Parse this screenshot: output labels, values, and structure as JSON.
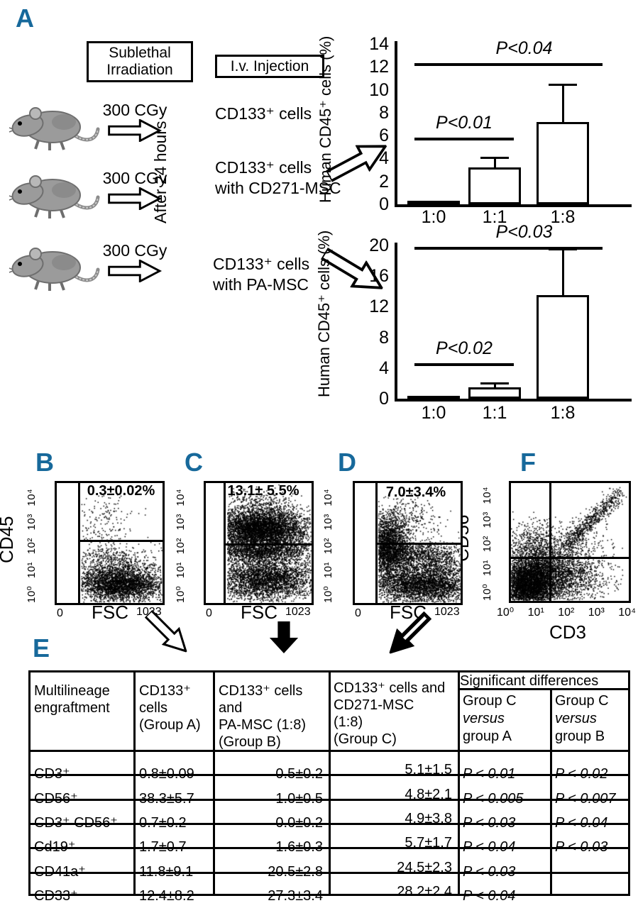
{
  "panel_labels": {
    "a": "A",
    "b": "B",
    "c": "C",
    "d": "D",
    "e": "E",
    "f": "F"
  },
  "colors": {
    "panel_label": "#17699b",
    "ink": "#000000",
    "mouse_body": "#9b9b9b",
    "mouse_outline": "#6e6e6e"
  },
  "panel_a": {
    "irradiation_box": "Sublethal\nIrradiation",
    "injection_box": "I.v. Injection",
    "after_label": "After 24 hours",
    "dose_label": "300 CGy",
    "injections": [
      "CD133⁺ cells",
      "CD133⁺ cells\nwith CD271-MSC",
      "CD133⁺ cells\nwith PA-MSC"
    ]
  },
  "chart_data": [
    {
      "id": "engraftment_cd271",
      "type": "bar",
      "ylabel": "Human CD45⁺ cells (%)",
      "xlabel": "",
      "categories": [
        "1:0",
        "1:1",
        "1:8"
      ],
      "values": [
        0.3,
        3.2,
        7.2
      ],
      "errors": [
        0,
        0.9,
        3.3
      ],
      "fills": [
        "black",
        "white",
        "white"
      ],
      "ylim": [
        0,
        14
      ],
      "yticks": [
        0,
        2,
        4,
        6,
        8,
        10,
        12,
        14
      ],
      "significance": [
        {
          "label": "P<0.01",
          "from": 0,
          "to": 1,
          "y": 5.8
        },
        {
          "label": "P<0.04",
          "from": 0,
          "to": 2,
          "y": 12.3
        }
      ]
    },
    {
      "id": "engraftment_pa",
      "type": "bar",
      "ylabel": "Human CD45⁺ cells (%)",
      "xlabel": "",
      "categories": [
        "1:0",
        "1:1",
        "1:8"
      ],
      "values": [
        0.2,
        1.5,
        13.5
      ],
      "errors": [
        0,
        0.5,
        6.0
      ],
      "fills": [
        "black",
        "white",
        "white"
      ],
      "ylim": [
        0,
        20
      ],
      "yticks": [
        0,
        4,
        8,
        12,
        16,
        20
      ],
      "significance": [
        {
          "label": "P<0.02",
          "from": 0,
          "to": 1,
          "y": 4.6
        },
        {
          "label": "P<0.03",
          "from": 0,
          "to": 2,
          "y": 19.8
        }
      ]
    },
    {
      "id": "flow_b",
      "type": "scatter",
      "panel": "B",
      "xlabel": "FSC",
      "ylabel": "CD45",
      "x_ticks": [
        "0",
        "1023"
      ],
      "y_ticks": "10⁰ 10¹ 10² 10³ 10⁴",
      "gate_label": "0.3±0.02%",
      "gate": {
        "vx": 0.22,
        "hy": 0.52
      },
      "clip_x": 0.23,
      "clusters": [
        {
          "n": 2600,
          "cx": 0.6,
          "cy": 0.15,
          "sx": 0.2,
          "sy": 0.065
        },
        {
          "n": 1000,
          "cx": 0.55,
          "cy": 0.25,
          "sx": 0.24,
          "sy": 0.08
        },
        {
          "n": 220,
          "cx": 0.5,
          "cy": 0.4,
          "sx": 0.2,
          "sy": 0.05
        },
        {
          "n": 130,
          "cx": 0.45,
          "cy": 0.73,
          "sx": 0.15,
          "sy": 0.12
        },
        {
          "n": 60,
          "cx": 0.35,
          "cy": 0.58,
          "sx": 0.2,
          "sy": 0.05
        }
      ]
    },
    {
      "id": "flow_c",
      "type": "scatter",
      "panel": "C",
      "xlabel": "FSC",
      "ylabel": "CD45",
      "x_ticks": [
        "0",
        "1023"
      ],
      "y_ticks": "10⁰ 10¹ 10² 10³ 10⁴",
      "gate_label": "13.1± 5.5%",
      "gate": {
        "vx": 0.19,
        "hy": 0.49
      },
      "clip_x": 0.2,
      "clusters": [
        {
          "n": 2600,
          "cx": 0.45,
          "cy": 0.62,
          "sx": 0.2,
          "sy": 0.07
        },
        {
          "n": 1800,
          "cx": 0.6,
          "cy": 0.63,
          "sx": 0.2,
          "sy": 0.08
        },
        {
          "n": 1800,
          "cx": 0.5,
          "cy": 0.44,
          "sx": 0.24,
          "sy": 0.05
        },
        {
          "n": 3200,
          "cx": 0.55,
          "cy": 0.2,
          "sx": 0.24,
          "sy": 0.09
        },
        {
          "n": 450,
          "cx": 0.5,
          "cy": 0.82,
          "sx": 0.18,
          "sy": 0.08
        },
        {
          "n": 150,
          "cx": 0.85,
          "cy": 0.45,
          "sx": 0.1,
          "sy": 0.15
        }
      ]
    },
    {
      "id": "flow_d",
      "type": "scatter",
      "panel": "D",
      "xlabel": "FSC",
      "ylabel": "CD45",
      "x_ticks": [
        "0",
        "1023"
      ],
      "y_ticks": "10⁰ 10¹ 10² 10³ 10⁴",
      "gate_label": "7.0±3.4%",
      "gate": {
        "vx": 0.21,
        "hy": 0.5
      },
      "clip_x": 0.22,
      "clusters": [
        {
          "n": 2400,
          "cx": 0.3,
          "cy": 0.48,
          "sx": 0.1,
          "sy": 0.13
        },
        {
          "n": 3200,
          "cx": 0.62,
          "cy": 0.16,
          "sx": 0.24,
          "sy": 0.08
        },
        {
          "n": 1300,
          "cx": 0.55,
          "cy": 0.4,
          "sx": 0.25,
          "sy": 0.06
        },
        {
          "n": 350,
          "cx": 0.45,
          "cy": 0.7,
          "sx": 0.18,
          "sy": 0.1
        },
        {
          "n": 250,
          "cx": 0.8,
          "cy": 0.28,
          "sx": 0.12,
          "sy": 0.1
        }
      ]
    },
    {
      "id": "flow_f",
      "type": "scatter",
      "panel": "F",
      "xlabel": "CD3",
      "ylabel": "CD56",
      "x_ticks": [
        "10⁰",
        "10¹",
        "10²",
        "10³",
        "10⁴"
      ],
      "y_ticks": "10⁰ 10¹ 10² 10³ 10⁴",
      "gate_label": "",
      "gate": {
        "vx": 0.34,
        "hy": 0.37
      },
      "clip_x": 0.0,
      "clusters": [
        {
          "n": 3800,
          "cx": 0.14,
          "cy": 0.14,
          "sx": 0.11,
          "sy": 0.11
        },
        {
          "n": 1600,
          "cx": 0.28,
          "cy": 0.26,
          "sx": 0.14,
          "sy": 0.12
        },
        {
          "n": 900,
          "cx": 0.5,
          "cy": 0.18,
          "sx": 0.18,
          "sy": 0.1
        },
        {
          "n": 500,
          "cx": 0.2,
          "cy": 0.48,
          "sx": 0.12,
          "sy": 0.1
        },
        {
          "n": 650,
          "type": "diag",
          "x0": 0.45,
          "y0": 0.45,
          "x1": 0.92,
          "y1": 0.92,
          "s": 0.035
        },
        {
          "n": 300,
          "cx": 0.55,
          "cy": 0.45,
          "sx": 0.15,
          "sy": 0.12
        }
      ]
    }
  ],
  "table": {
    "col1_header": "Multilineage\nengraftment",
    "col2_header": "CD133⁺\ncells\n(Group A)",
    "col3_header": "CD133⁺ cells\nand\nPA-MSC (1:8)\n(Group B)",
    "col4_header": "CD133⁺ cells and\nCD271-MSC\n(1:8)\n(Group C)",
    "sig_header": "Significant differences",
    "sig_sub1": {
      "l1": "Group C",
      "l2": "versus",
      "l3": "group A"
    },
    "sig_sub2": {
      "l1": "Group C",
      "l2": "versus",
      "l3": "group B"
    },
    "rows": [
      {
        "marker": "CD3⁺",
        "a": "0.8±0.09",
        "b": "0.5±0.2",
        "c": "5.1±1.5",
        "pa": "P < 0.01",
        "pb": "P < 0.02"
      },
      {
        "marker": "CD56⁺",
        "a": "38.3±5.7",
        "b": "1.0±0.5",
        "c": "4.8±2.1",
        "pa": "P < 0.005",
        "pb": "P < 0.007"
      },
      {
        "marker": "CD3⁺ CD56⁺",
        "a": "0.7±0.2",
        "b": "0.0±0.2",
        "c": "4.9±3.8",
        "pa": "P < 0.03",
        "pb": "P < 0.04"
      },
      {
        "marker": "Cd19⁺",
        "a": "1.7±0.7",
        "b": "1.6±0.3",
        "c": "5.7±1.7",
        "pa": "P < 0.04",
        "pb": "P < 0.03"
      },
      {
        "marker": "CD41a⁺",
        "a": "11.8±9.1",
        "b": "20.5±2.8",
        "c": "24.5±2.3",
        "pa": "P < 0.03",
        "pb": ""
      },
      {
        "marker": "CD33⁺",
        "a": "12.4±8.2",
        "b": "27.3±3.4",
        "c": "28.2±2.4",
        "pa": "P < 0.04",
        "pb": ""
      }
    ]
  }
}
